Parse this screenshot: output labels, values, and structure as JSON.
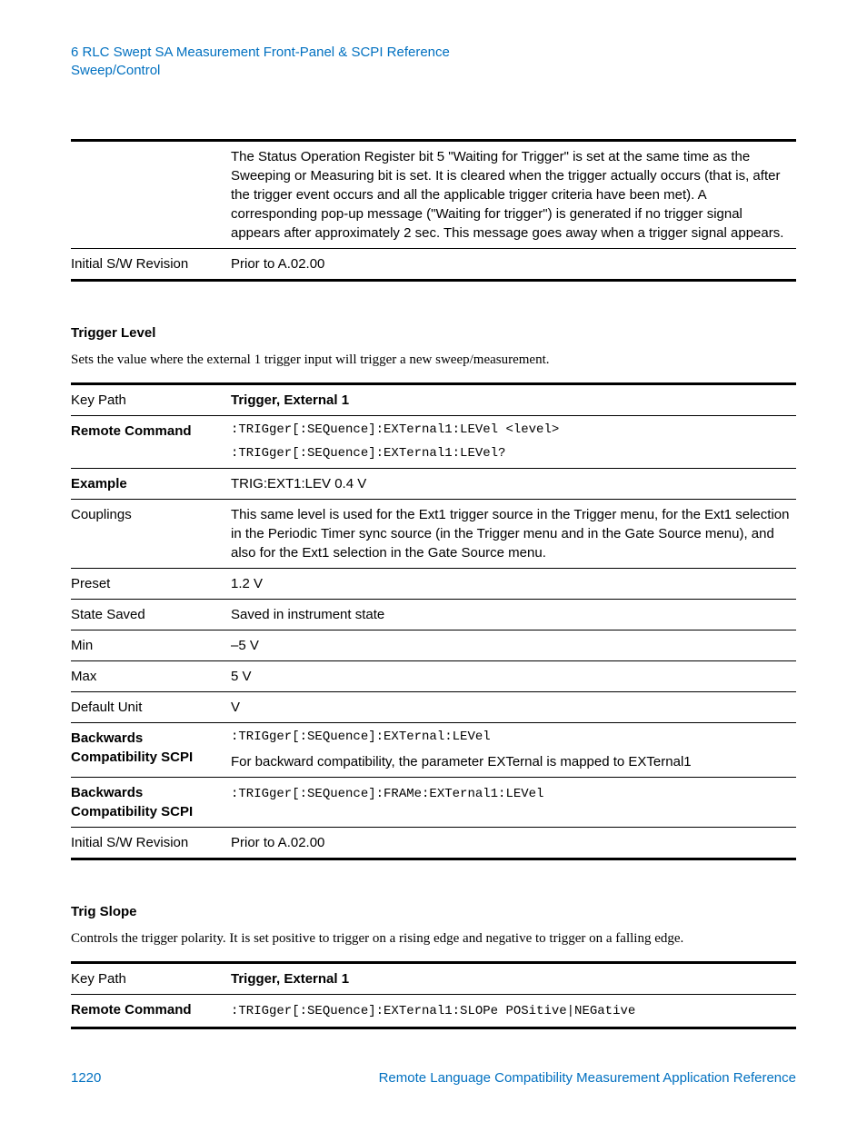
{
  "header": {
    "line1": "6  RLC Swept SA Measurement Front-Panel & SCPI Reference",
    "line2": "Sweep/Control"
  },
  "table1": {
    "rows": [
      {
        "key": "",
        "keyBold": false,
        "valBold": false,
        "valMono": false,
        "val": "The Status Operation Register bit 5 \"Waiting for Trigger\" is set at the same time as the Sweeping or Measuring bit is set. It is cleared when the trigger actually occurs (that is, after the trigger event occurs and all the applicable trigger criteria have been met). A corresponding pop-up message (\"Waiting for trigger\") is generated if no trigger signal appears after approximately 2 sec. This message goes away when a trigger signal appears."
      },
      {
        "key": "Initial S/W Revision",
        "keyBold": false,
        "valBold": false,
        "valMono": false,
        "val": "Prior to A.02.00"
      }
    ]
  },
  "section1": {
    "title": "Trigger Level",
    "body": "Sets the value where the external 1 trigger input will trigger a new sweep/measurement."
  },
  "table2": {
    "rows": [
      {
        "key": "Key Path",
        "keyBold": false,
        "valBold": true,
        "valMono": false,
        "val": "Trigger, External 1"
      },
      {
        "key": "Remote Command",
        "keyBold": true,
        "valBold": false,
        "valMono": true,
        "valLines": [
          ":TRIGger[:SEQuence]:EXTernal1:LEVel <level>",
          ":TRIGger[:SEQuence]:EXTernal1:LEVel?"
        ]
      },
      {
        "key": "Example",
        "keyBold": true,
        "valBold": false,
        "valMono": false,
        "val": "TRIG:EXT1:LEV 0.4 V"
      },
      {
        "key": "Couplings",
        "keyBold": false,
        "valBold": false,
        "valMono": false,
        "val": "This same level is used for the Ext1 trigger source in the Trigger menu, for the Ext1 selection in the Periodic Timer sync source (in the Trigger menu and in the Gate Source menu), and also for the Ext1 selection in the Gate Source menu."
      },
      {
        "key": "Preset",
        "keyBold": false,
        "valBold": false,
        "valMono": false,
        "val": "1.2 V"
      },
      {
        "key": "State Saved",
        "keyBold": false,
        "valBold": false,
        "valMono": false,
        "val": "Saved in instrument state"
      },
      {
        "key": "Min",
        "keyBold": false,
        "valBold": false,
        "valMono": false,
        "val": "–5 V"
      },
      {
        "key": "Max",
        "keyBold": false,
        "valBold": false,
        "valMono": false,
        "val": "5 V"
      },
      {
        "key": "Default Unit",
        "keyBold": false,
        "valBold": false,
        "valMono": false,
        "val": "V"
      },
      {
        "key": "Backwards Compatibility SCPI",
        "keyBold": true,
        "valBold": false,
        "valMono": false,
        "monoFirst": ":TRIGger[:SEQuence]:EXTernal:LEVel",
        "val": "For backward compatibility, the parameter EXTernal is mapped to EXTernal1"
      },
      {
        "key": "Backwards Compatibility SCPI",
        "keyBold": true,
        "valBold": false,
        "valMono": true,
        "val": ":TRIGger[:SEQuence]:FRAMe:EXTernal1:LEVel"
      },
      {
        "key": "Initial S/W Revision",
        "keyBold": false,
        "valBold": false,
        "valMono": false,
        "val": "Prior to A.02.00"
      }
    ]
  },
  "section2": {
    "title": "Trig Slope",
    "body": "Controls the trigger polarity. It is set positive to trigger on a rising edge and negative to trigger on a falling edge."
  },
  "table3": {
    "rows": [
      {
        "key": "Key Path",
        "keyBold": false,
        "valBold": true,
        "valMono": false,
        "val": "Trigger, External 1"
      },
      {
        "key": "Remote Command",
        "keyBold": true,
        "valBold": false,
        "valMono": true,
        "val": ":TRIGger[:SEQuence]:EXTernal1:SLOPe POSitive|NEGative"
      }
    ]
  },
  "footer": {
    "pageNum": "1220",
    "docTitle": "Remote Language Compatibility Measurement Application Reference"
  }
}
